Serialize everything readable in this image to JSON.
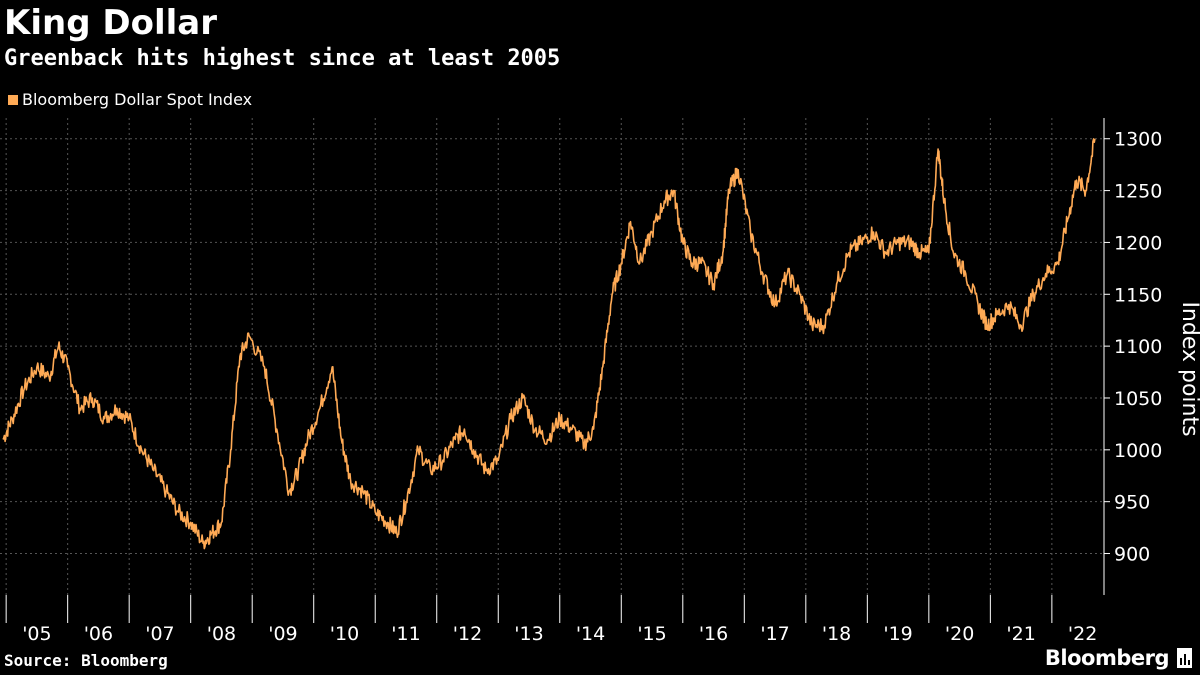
{
  "title": "King Dollar",
  "subtitle": "Greenback hits highest since at least 2005",
  "source": "Source: Bloomberg",
  "brand": "Bloomberg",
  "colors": {
    "background": "#000000",
    "series": "#FFAA55",
    "text": "#FFFFFF",
    "grid": "#555555"
  },
  "chart_data": {
    "type": "line",
    "title": "King Dollar",
    "subtitle": "Greenback hits highest since at least 2005",
    "xlabel": "",
    "ylabel": "Index points",
    "ylim": [
      860,
      1320
    ],
    "xlim": [
      2004.9,
      2022.75
    ],
    "yticks": [
      900,
      950,
      1000,
      1050,
      1100,
      1150,
      1200,
      1250,
      1300
    ],
    "ytick_labels": [
      "900",
      "950",
      "1000",
      "1050",
      "1100",
      "1150",
      "1200",
      "1250",
      "1300"
    ],
    "xticks": [
      2005,
      2006,
      2007,
      2008,
      2009,
      2010,
      2011,
      2012,
      2013,
      2014,
      2015,
      2016,
      2017,
      2018,
      2019,
      2020,
      2021,
      2022
    ],
    "xtick_labels": [
      "'05",
      "'06",
      "'07",
      "'08",
      "'09",
      "'10",
      "'11",
      "'12",
      "'13",
      "'14",
      "'15",
      "'16",
      "'17",
      "'18",
      "'19",
      "'20",
      "'21",
      "'22"
    ],
    "grid": true,
    "legend_position": "top-left",
    "series": [
      {
        "name": "Bloomberg Dollar Spot Index",
        "color": "#FFAA55",
        "x": [
          2004.95,
          2005.1,
          2005.3,
          2005.5,
          2005.7,
          2005.85,
          2006.0,
          2006.2,
          2006.4,
          2006.6,
          2006.8,
          2007.0,
          2007.2,
          2007.4,
          2007.6,
          2007.8,
          2008.0,
          2008.2,
          2008.35,
          2008.5,
          2008.65,
          2008.8,
          2008.95,
          2009.2,
          2009.4,
          2009.6,
          2009.75,
          2009.9,
          2010.1,
          2010.3,
          2010.45,
          2010.6,
          2010.8,
          2011.0,
          2011.2,
          2011.35,
          2011.5,
          2011.7,
          2011.9,
          2012.1,
          2012.3,
          2012.45,
          2012.6,
          2012.8,
          2013.0,
          2013.2,
          2013.4,
          2013.6,
          2013.8,
          2014.0,
          2014.2,
          2014.4,
          2014.55,
          2014.7,
          2014.85,
          2015.0,
          2015.15,
          2015.3,
          2015.5,
          2015.7,
          2015.85,
          2016.0,
          2016.15,
          2016.3,
          2016.5,
          2016.65,
          2016.75,
          2016.9,
          2017.1,
          2017.3,
          2017.5,
          2017.7,
          2017.9,
          2018.1,
          2018.3,
          2018.5,
          2018.7,
          2018.9,
          2019.1,
          2019.3,
          2019.5,
          2019.7,
          2019.85,
          2020.0,
          2020.15,
          2020.25,
          2020.4,
          2020.6,
          2020.8,
          2020.95,
          2021.1,
          2021.3,
          2021.5,
          2021.7,
          2021.9,
          2022.1,
          2022.25,
          2022.4,
          2022.55,
          2022.7
        ],
        "y": [
          1010,
          1030,
          1060,
          1080,
          1070,
          1100,
          1080,
          1040,
          1050,
          1030,
          1040,
          1030,
          1000,
          980,
          960,
          940,
          930,
          910,
          920,
          930,
          1000,
          1090,
          1110,
          1080,
          1020,
          960,
          980,
          1010,
          1040,
          1080,
          1010,
          970,
          960,
          940,
          930,
          920,
          950,
          1000,
          980,
          990,
          1010,
          1020,
          1000,
          980,
          990,
          1030,
          1050,
          1020,
          1010,
          1030,
          1020,
          1005,
          1020,
          1080,
          1150,
          1180,
          1220,
          1180,
          1210,
          1240,
          1250,
          1200,
          1180,
          1180,
          1160,
          1190,
          1250,
          1270,
          1210,
          1170,
          1140,
          1170,
          1150,
          1120,
          1120,
          1160,
          1190,
          1200,
          1210,
          1190,
          1200,
          1200,
          1190,
          1190,
          1290,
          1240,
          1190,
          1170,
          1140,
          1120,
          1130,
          1140,
          1120,
          1150,
          1170,
          1180,
          1220,
          1260,
          1250,
          1300
        ]
      }
    ]
  }
}
